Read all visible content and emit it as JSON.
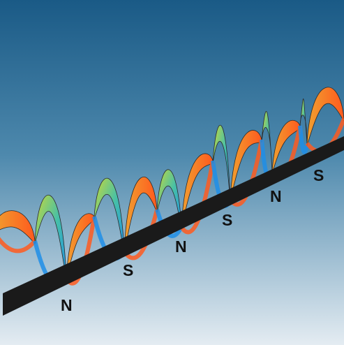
{
  "colors": {
    "sky_top": "#1a5a86",
    "sky_mid": "#4e89ad",
    "sky_bottom": "#e4ecf2",
    "bar": "#1a1a1a",
    "warm_start": "#f0a030",
    "warm_end": "#ff5a1e",
    "cool_start": "#c8d93a",
    "cool_mid": "#46c0a8",
    "cool_end": "#1e8ee8"
  },
  "pole_labels": [
    "N",
    "S",
    "N",
    "S",
    "N",
    "S"
  ]
}
